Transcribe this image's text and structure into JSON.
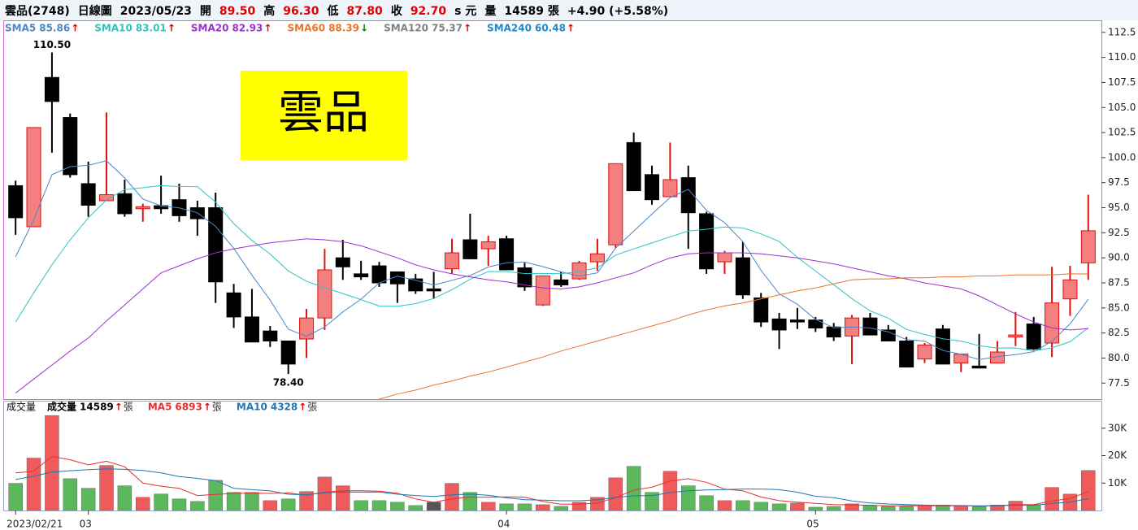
{
  "chart_data": {
    "type": "candlestick",
    "header": [
      {
        "text": "雲品(2748)"
      },
      {
        "text": "日線圖"
      },
      {
        "text": "2023/05/23"
      },
      {
        "text": "開"
      },
      {
        "text": "89.50",
        "color": "#e00000"
      },
      {
        "text": "高"
      },
      {
        "text": "96.30",
        "color": "#e00000"
      },
      {
        "text": "低"
      },
      {
        "text": "87.80",
        "color": "#e00000"
      },
      {
        "text": "收"
      },
      {
        "text": "92.70",
        "color": "#e00000"
      },
      {
        "text": "s 元"
      },
      {
        "text": "量"
      },
      {
        "text": "14589 張"
      },
      {
        "text": "+4.90 (+5.58%)"
      }
    ],
    "watermark": "雲品",
    "high_label": "110.50",
    "low_label": "78.40",
    "categories": [
      "2023/02/21",
      null,
      null,
      null,
      "03",
      null,
      null,
      null,
      null,
      null,
      null,
      null,
      null,
      null,
      null,
      null,
      null,
      null,
      null,
      null,
      null,
      null,
      null,
      null,
      null,
      null,
      null,
      "04",
      null,
      null,
      null,
      null,
      null,
      null,
      null,
      null,
      null,
      null,
      null,
      null,
      null,
      null,
      null,
      null,
      "05",
      null,
      null,
      null,
      null,
      null,
      null,
      null,
      null,
      null,
      null,
      null,
      null,
      null,
      null,
      null
    ],
    "open": [
      97.2,
      93.1,
      108.0,
      104.0,
      97.4,
      95.7,
      96.4,
      94.9,
      95.2,
      95.8,
      95.0,
      95.0,
      86.5,
      84.1,
      82.7,
      81.7,
      81.9,
      84.0,
      90.0,
      88.4,
      89.2,
      88.6,
      87.9,
      86.9,
      88.9,
      91.8,
      90.9,
      91.9,
      89.0,
      85.3,
      87.8,
      87.9,
      89.6,
      91.3,
      101.5,
      98.3,
      96.1,
      98.0,
      94.4,
      89.6,
      90.0,
      86.0,
      83.9,
      83.8,
      83.8,
      83.1,
      82.2,
      84.0,
      82.8,
      81.7,
      79.9,
      82.9,
      79.5,
      79.2,
      79.5,
      82.1,
      83.4,
      81.5,
      85.9,
      89.5
    ],
    "high": [
      97.7,
      103.0,
      110.5,
      104.4,
      99.6,
      104.5,
      97.8,
      95.4,
      98.2,
      97.4,
      95.7,
      96.5,
      87.4,
      86.9,
      83.2,
      81.7,
      84.9,
      90.9,
      91.8,
      89.7,
      89.6,
      88.6,
      88.4,
      88.6,
      91.9,
      94.4,
      92.2,
      92.2,
      89.5,
      88.2,
      88.6,
      89.7,
      91.9,
      99.4,
      102.5,
      99.2,
      101.5,
      99.2,
      94.6,
      90.7,
      91.6,
      86.5,
      84.5,
      85.0,
      84.1,
      83.5,
      84.3,
      84.5,
      83.3,
      82.1,
      81.5,
      83.3,
      80.4,
      82.4,
      81.7,
      84.6,
      84.1,
      89.1,
      89.2,
      96.3
    ],
    "low": [
      92.3,
      93.1,
      100.5,
      98.0,
      94.1,
      95.7,
      94.1,
      93.6,
      94.4,
      93.6,
      92.2,
      85.5,
      83.0,
      81.6,
      81.1,
      78.4,
      80.0,
      82.8,
      87.8,
      87.8,
      87.1,
      85.5,
      86.4,
      85.9,
      88.4,
      89.9,
      89.2,
      88.8,
      86.7,
      85.2,
      87.1,
      87.8,
      88.7,
      91.0,
      96.7,
      95.3,
      96.1,
      90.9,
      88.4,
      88.4,
      85.9,
      83.1,
      80.9,
      82.9,
      82.6,
      81.7,
      79.4,
      82.3,
      81.7,
      79.1,
      79.5,
      79.4,
      78.6,
      79.0,
      79.5,
      81.2,
      80.8,
      80.1,
      84.2,
      87.8
    ],
    "close": [
      94.0,
      103.0,
      105.6,
      98.3,
      95.25,
      96.3,
      94.4,
      95.1,
      94.9,
      94.2,
      93.9,
      87.6,
      84.1,
      81.6,
      81.7,
      79.4,
      84.0,
      88.8,
      89.1,
      88.1,
      87.5,
      87.4,
      86.7,
      86.7,
      90.5,
      89.9,
      91.6,
      88.8,
      87.1,
      88.2,
      87.3,
      89.5,
      90.4,
      99.4,
      96.7,
      95.8,
      97.8,
      94.5,
      88.9,
      90.5,
      86.3,
      83.6,
      82.8,
      83.6,
      83.0,
      82.1,
      84.0,
      82.3,
      81.7,
      79.1,
      81.3,
      79.4,
      80.4,
      79.0,
      80.6,
      82.3,
      80.9,
      85.5,
      87.8,
      92.7
    ],
    "volume": [
      9900,
      19100,
      34600,
      11600,
      8100,
      16400,
      9000,
      4800,
      6000,
      4200,
      3300,
      11000,
      6600,
      6600,
      3600,
      4200,
      6900,
      12200,
      9000,
      3600,
      3600,
      3000,
      1800,
      3000,
      9900,
      6600,
      3000,
      2400,
      2400,
      2100,
      1500,
      3000,
      4800,
      11900,
      16100,
      6600,
      14300,
      9000,
      5400,
      3600,
      3600,
      3000,
      2400,
      2700,
      1200,
      1500,
      2400,
      1800,
      1500,
      1500,
      1700,
      2000,
      1700,
      1400,
      2000,
      3400,
      2100,
      8400,
      5975,
      14589
    ],
    "up_color": "#f47f7f",
    "up_edge": "#e01010",
    "down_color": "#000000",
    "volume_up_color": "#ef5b5b",
    "volume_down_color": "#5cb85c",
    "volume_flat_color": "#555555",
    "ylim": [
      75.9,
      113.7
    ],
    "yticks": [
      {
        "value": 77.5,
        "label": "77.5"
      },
      {
        "value": 80,
        "label": "80.0"
      },
      82.5,
      {
        "value": 85,
        "label": "85.0"
      },
      87.5,
      {
        "value": 90,
        "label": "90.0"
      },
      92.5,
      {
        "value": 95,
        "label": "95.0"
      },
      97.5,
      {
        "value": 100,
        "label": "100.0"
      },
      102.5,
      {
        "value": 105,
        "label": "105.0"
      },
      107.5,
      {
        "value": 110,
        "label": "110.0"
      },
      112.5
    ],
    "volume_ylim": [
      0,
      40000
    ],
    "volume_yticks": [
      {
        "value": 10000,
        "label": "10K"
      },
      {
        "value": 20000,
        "label": "20K"
      },
      {
        "value": 30000,
        "label": "30K"
      }
    ],
    "moving_averages": [
      {
        "name": "SMA5",
        "value_label": "85.86",
        "arrow": "↑",
        "arrow_color": "#e00000",
        "color": "#4a86c8",
        "values": [
          90.1,
          93.8,
          98.3,
          99.1,
          99.23,
          99.69,
          97.97,
          95.87,
          95.19,
          94.98,
          94.5,
          93.14,
          90.94,
          88.28,
          85.78,
          82.88,
          82.16,
          83.1,
          84.6,
          85.88,
          87.5,
          88.18,
          87.76,
          87.28,
          87.76,
          88.24,
          89.08,
          89.5,
          89.58,
          89.12,
          88.6,
          88.18,
          88.5,
          90.96,
          92.66,
          94.36,
          96.02,
          96.84,
          94.74,
          93.5,
          91.6,
          88.76,
          86.42,
          85.36,
          83.86,
          83.02,
          83.1,
          83.0,
          82.62,
          81.84,
          81.68,
          80.76,
          80.38,
          79.84,
          80.14,
          80.34,
          80.64,
          81.66,
          83.42,
          85.86
        ]
      },
      {
        "name": "SMA10",
        "value_label": "83.01",
        "arrow": "↑",
        "arrow_color": "#e00000",
        "color": "#2ec4c4",
        "values": [
          83.6,
          86.5,
          89.3,
          91.8,
          94.0,
          95.8,
          96.8,
          97.0,
          97.2,
          97.11,
          97.1,
          95.56,
          93.41,
          91.74,
          90.38,
          88.69,
          87.65,
          87.02,
          86.44,
          85.83,
          85.19,
          85.17,
          85.43,
          85.94,
          86.82,
          87.87,
          88.63,
          88.63,
          88.43,
          88.44,
          88.42,
          88.63,
          89.0,
          90.27,
          90.89,
          91.48,
          92.1,
          92.67,
          92.85,
          93.08,
          92.98,
          92.39,
          91.63,
          90.05,
          88.68,
          87.31,
          85.93,
          84.71,
          83.99,
          82.85,
          82.35,
          81.93,
          81.69,
          81.23,
          80.99,
          81.01,
          80.7,
          81.02,
          81.63,
          83.01
        ]
      },
      {
        "name": "SMA20",
        "value_label": "82.93",
        "arrow": "↑",
        "arrow_color": "#e00000",
        "color": "#9b30d0",
        "values": [
          76.5,
          77.9,
          79.3,
          80.7,
          82.0,
          83.7,
          85.3,
          86.9,
          88.5,
          89.2,
          89.9,
          90.5,
          90.9,
          91.2,
          91.5,
          91.7,
          91.9,
          91.8,
          91.6,
          91.2,
          90.6,
          90.0,
          89.3,
          88.8,
          88.4,
          88.1,
          87.8,
          87.6,
          87.3,
          87.0,
          86.9,
          87.1,
          87.5,
          88.0,
          88.5,
          89.3,
          90.0,
          90.4,
          90.5,
          90.5,
          90.5,
          90.4,
          90.2,
          90.0,
          89.7,
          89.4,
          89.0,
          88.6,
          88.2,
          87.9,
          87.5,
          87.2,
          86.9,
          86.2,
          85.3,
          84.4,
          83.6,
          83.0,
          82.8,
          82.93
        ]
      },
      {
        "name": "SMA60",
        "value_label": "88.39",
        "arrow": "↓",
        "arrow_color": "#008000",
        "color": "#e8742a",
        "values": [
          null,
          null,
          null,
          null,
          null,
          null,
          null,
          null,
          null,
          null,
          null,
          null,
          null,
          null,
          null,
          null,
          null,
          null,
          null,
          null,
          75.9,
          76.4,
          76.8,
          77.3,
          77.7,
          78.2,
          78.6,
          79.1,
          79.6,
          80.1,
          80.7,
          81.2,
          81.7,
          82.2,
          82.7,
          83.2,
          83.7,
          84.3,
          84.8,
          85.2,
          85.5,
          85.9,
          86.3,
          86.7,
          87.0,
          87.4,
          87.8,
          87.9,
          87.9,
          88.0,
          88.0,
          88.1,
          88.1,
          88.2,
          88.2,
          88.3,
          88.3,
          88.3,
          88.4,
          88.39
        ]
      },
      {
        "name": "SMA120",
        "value_label": "75.37",
        "arrow": "↑",
        "arrow_color": "#e00000",
        "color": "#808080"
      },
      {
        "name": "SMA240",
        "value_label": "60.48",
        "arrow": "↑",
        "arrow_color": "#e00000",
        "color": "#1e88c8"
      }
    ],
    "volume_title": "成交量",
    "volume_legend": [
      {
        "name": "成交量",
        "value_label": "14589",
        "arrow": "↑",
        "unit": "張",
        "color": "#000000",
        "arrow_color": "#e00000"
      },
      {
        "name": "MA5",
        "value_label": "6893",
        "arrow": "↑",
        "unit": "張",
        "color": "#e83030",
        "arrow_color": "#e00000",
        "values": [
          13700,
          14300,
          19700,
          18500,
          16660,
          17960,
          15940,
          9980,
          8860,
          8080,
          5460,
          5860,
          6220,
          6340,
          6220,
          6400,
          5580,
          6700,
          7180,
          7180,
          7060,
          6280,
          4200,
          3000,
          4260,
          4860,
          4860,
          4980,
          4860,
          3300,
          2280,
          2280,
          2760,
          4660,
          7460,
          8480,
          10740,
          11580,
          10280,
          7780,
          7180,
          4920,
          3600,
          3060,
          2580,
          2160,
          2040,
          1920,
          1680,
          1740,
          1780,
          1700,
          1680,
          1660,
          1760,
          2100,
          2120,
          3460,
          4375,
          6893
        ]
      },
      {
        "name": "MA10",
        "value_label": "4328",
        "arrow": "↑",
        "unit": "張",
        "color": "#1f77b4",
        "arrow_color": "#e00000",
        "values": [
          11300,
          12500,
          14000,
          14500,
          14900,
          15200,
          15000,
          14600,
          13700,
          12370,
          11710,
          10900,
          8100,
          7600,
          7150,
          5930,
          5720,
          6460,
          6760,
          6700,
          6730,
          5930,
          5450,
          5090,
          5720,
          5960,
          5570,
          4590,
          3930,
          3780,
          3570,
          3570,
          3870,
          4760,
          5380,
          5380,
          6510,
          7170,
          7470,
          7620,
          7830,
          7830,
          7590,
          6670,
          5180,
          4670,
          3480,
          2760,
          2370,
          2160,
          1970,
          1870,
          1800,
          1670,
          1750,
          1940,
          1910,
          2570,
          3020,
          4328
        ]
      }
    ]
  }
}
